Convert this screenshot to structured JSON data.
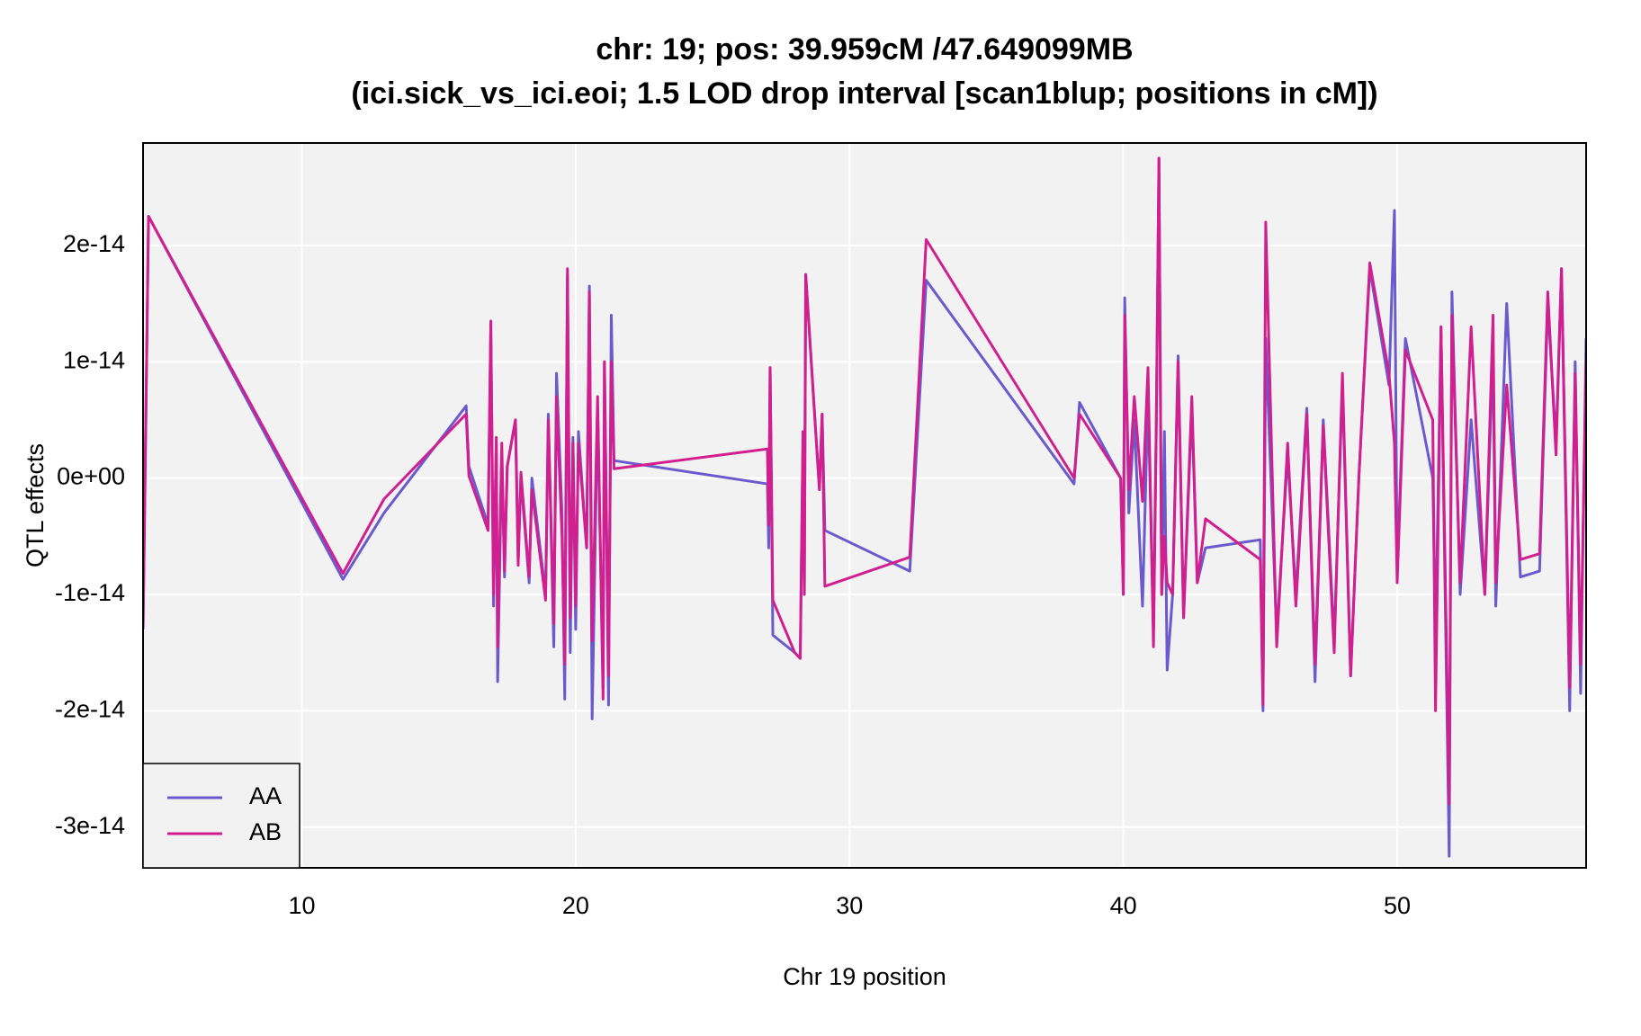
{
  "chart_data": {
    "type": "line",
    "title": "chr: 19; pos: 39.959cM /47.649099MB",
    "subtitle": "(ici.sick_vs_ici.eoi; 1.5 LOD drop interval [scan1blup; positions in cM])",
    "xlabel": "Chr 19 position",
    "ylabel": "QTL effects",
    "xlim": [
      4.2,
      56.9
    ],
    "ylim": [
      -3.35e-14,
      2.88e-14
    ],
    "xticks": [
      10,
      20,
      30,
      40,
      50
    ],
    "yticks": [
      {
        "value": -3e-14,
        "label": "-3e-14"
      },
      {
        "value": -2e-14,
        "label": "-2e-14"
      },
      {
        "value": -1e-14,
        "label": "-1e-14"
      },
      {
        "value": 0,
        "label": "0e+00"
      },
      {
        "value": 1e-14,
        "label": "1e-14"
      },
      {
        "value": 2e-14,
        "label": "2e-14"
      }
    ],
    "grid": true,
    "legend": "bottomleft",
    "x": [
      4.2,
      4.4,
      11.5,
      13.0,
      16.0,
      16.1,
      16.8,
      16.9,
      17.0,
      17.1,
      17.15,
      17.3,
      17.4,
      17.5,
      17.8,
      17.9,
      18.0,
      18.3,
      18.4,
      18.9,
      19.0,
      19.2,
      19.3,
      19.5,
      19.6,
      19.7,
      19.8,
      19.9,
      20.0,
      20.1,
      20.4,
      20.5,
      20.6,
      20.8,
      21.0,
      21.05,
      21.2,
      21.3,
      21.4,
      27.0,
      27.05,
      27.1,
      27.2,
      28.0,
      28.2,
      28.3,
      28.35,
      28.4,
      28.9,
      29.0,
      29.1,
      32.2,
      32.8,
      38.2,
      38.4,
      39.9,
      40.0,
      40.05,
      40.2,
      40.4,
      40.7,
      40.9,
      41.1,
      41.2,
      41.3,
      41.4,
      41.5,
      41.6,
      41.8,
      42.0,
      42.2,
      42.5,
      42.7,
      43.0,
      45.0,
      45.1,
      45.2,
      45.6,
      46.0,
      46.3,
      46.7,
      47.0,
      47.3,
      47.7,
      48.0,
      48.3,
      48.6,
      49.0,
      49.7,
      49.9,
      50.0,
      50.3,
      51.3,
      51.4,
      51.6,
      51.9,
      52.0,
      52.3,
      52.7,
      53.2,
      53.5,
      53.6,
      54.0,
      54.5,
      55.2,
      55.5,
      55.8,
      56.0,
      56.3,
      56.5,
      56.7,
      56.9
    ],
    "series": [
      {
        "name": "AA",
        "color": "#6a5acd",
        "values": [
          -1.3e-14,
          2.25e-14,
          -8.7e-15,
          -3e-15,
          6.2e-15,
          1e-15,
          -4e-15,
          1.3e-14,
          -1.1e-14,
          3e-15,
          -1.75e-14,
          2e-15,
          -8.5e-15,
          1e-15,
          5e-15,
          -7e-15,
          0,
          -9e-15,
          0,
          -1e-14,
          5.5e-15,
          -1.45e-14,
          9e-15,
          -3e-15,
          -1.9e-14,
          1.75e-14,
          -1.5e-14,
          3.5e-15,
          -1.3e-14,
          4e-15,
          -6e-15,
          1.65e-14,
          -2.07e-14,
          6e-15,
          -1.8e-14,
          1e-14,
          -1.95e-14,
          1.4e-14,
          1.5e-15,
          -5e-16,
          -6e-15,
          9.5e-15,
          -1.35e-14,
          -1.5e-14,
          -1.55e-14,
          3e-15,
          -1e-14,
          1.75e-14,
          -1e-15,
          5.5e-15,
          -4.5e-15,
          -8e-15,
          1.7e-14,
          -5e-16,
          6.5e-15,
          0,
          -1e-14,
          1.55e-14,
          -3e-15,
          5e-15,
          -1.1e-14,
          7e-15,
          -1.3e-14,
          4e-15,
          2.75e-14,
          -1e-14,
          4e-15,
          -1.65e-14,
          -1e-14,
          1.05e-14,
          -1.2e-14,
          6e-15,
          -9e-15,
          -6e-15,
          -5.3e-15,
          -2e-14,
          1.2e-14,
          -1.35e-14,
          2e-15,
          -1e-14,
          6e-15,
          -1.75e-14,
          5e-15,
          -1.4e-14,
          8e-15,
          -1.7e-14,
          0,
          1.8e-14,
          8e-15,
          2.3e-14,
          -8e-15,
          1.2e-14,
          0,
          -1.4e-14,
          1.3e-14,
          -3.25e-14,
          1.6e-14,
          -1e-14,
          5e-15,
          -1e-14,
          1.1e-14,
          -1.1e-14,
          1.5e-14,
          -8.5e-15,
          -8e-15,
          1.5e-14,
          3e-15,
          1.8e-14,
          -2e-14,
          1e-14,
          -1.85e-14,
          1.2e-14
        ]
      },
      {
        "name": "AB",
        "color": "#d11f8f",
        "values": [
          -1.3e-14,
          2.25e-14,
          -8.2e-15,
          -1.8e-15,
          5.5e-15,
          2e-16,
          -4.5e-15,
          1.35e-14,
          -1e-14,
          3.5e-15,
          -1.45e-14,
          3e-15,
          -8e-15,
          1e-15,
          5e-15,
          -7.5e-15,
          5e-16,
          -8.5e-15,
          -1e-15,
          -1.05e-14,
          5e-15,
          -1.25e-14,
          7e-15,
          -5e-15,
          -1.6e-14,
          1.8e-14,
          -1.2e-14,
          3e-15,
          -1.1e-14,
          3e-15,
          -6e-15,
          1.6e-14,
          -1.4e-14,
          7e-15,
          -1.9e-14,
          1e-14,
          -1.7e-14,
          1e-14,
          8e-16,
          2.5e-15,
          -4e-15,
          9.5e-15,
          -1.05e-14,
          -1.5e-14,
          -1.55e-14,
          4e-15,
          -1e-14,
          1.75e-14,
          -1e-15,
          5.5e-15,
          -9.3e-15,
          -6.8e-15,
          2.05e-14,
          0,
          5.5e-15,
          0,
          -1e-14,
          1.4e-14,
          -1e-15,
          7e-15,
          -2e-15,
          9.5e-15,
          -1.45e-14,
          4e-15,
          2.75e-14,
          -1e-14,
          -5e-15,
          -9e-15,
          -1e-14,
          1e-14,
          -1.2e-14,
          7e-15,
          -9e-15,
          -3.5e-15,
          -7e-15,
          -1.95e-14,
          2.2e-14,
          -1.45e-14,
          3e-15,
          -1.1e-14,
          5.5e-15,
          -1.6e-14,
          4.5e-15,
          -1.5e-14,
          9e-15,
          -1.7e-14,
          0,
          1.85e-14,
          9e-15,
          3e-15,
          -9e-15,
          1.1e-14,
          5e-15,
          -2e-14,
          1.3e-14,
          -2.8e-14,
          1.4e-14,
          -9e-15,
          1.3e-14,
          -1e-14,
          1.4e-14,
          -9e-15,
          8e-15,
          -7e-15,
          -6.5e-15,
          1.6e-14,
          2e-15,
          1.8e-14,
          -1.8e-14,
          9e-15,
          -1.6e-14,
          1e-14
        ]
      }
    ]
  }
}
